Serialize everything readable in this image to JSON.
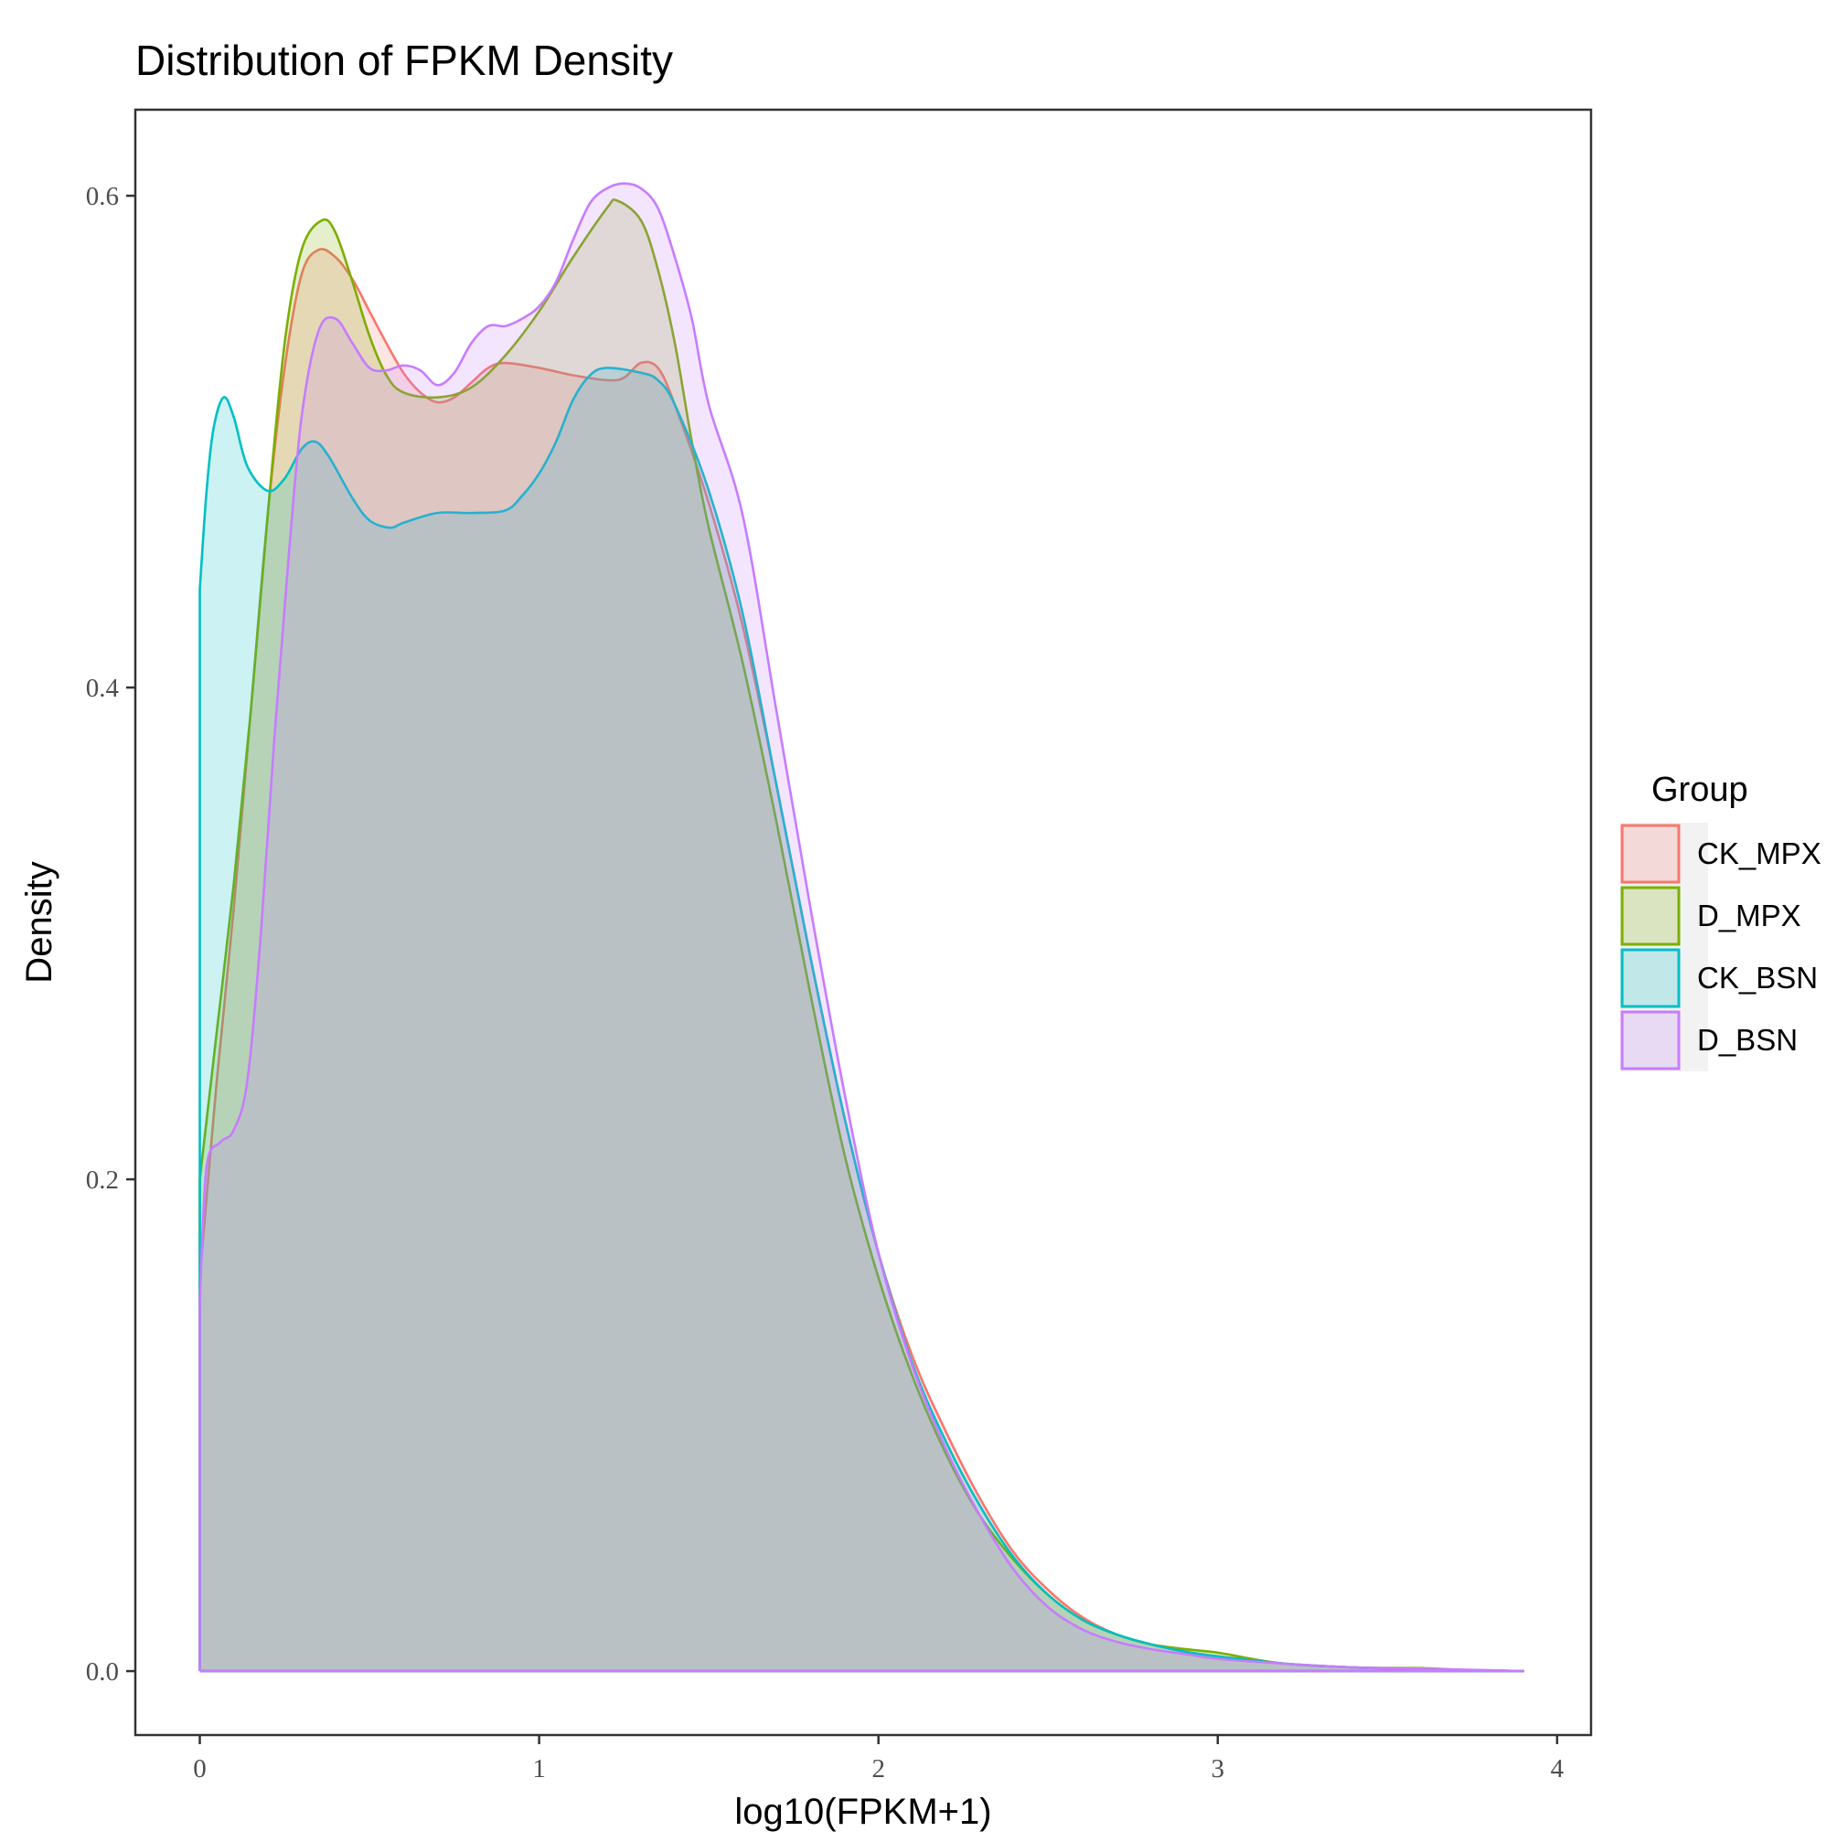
{
  "chart_data": {
    "type": "area",
    "title": "Distribution of FPKM Density",
    "xlabel": "log10(FPKM+1)",
    "ylabel": "Density",
    "xlim": [
      -0.19,
      4.1
    ],
    "ylim": [
      -0.026,
      0.635
    ],
    "x_ticks": [
      0,
      1,
      2,
      3,
      4
    ],
    "x_tick_labels": [
      "0",
      "1",
      "2",
      "3",
      "4"
    ],
    "y_ticks": [
      0.0,
      0.2,
      0.4,
      0.6
    ],
    "y_tick_labels": [
      "0.0",
      "0.2",
      "0.4",
      "0.6"
    ],
    "grid": false,
    "legend": {
      "title": "Group",
      "position": "right"
    },
    "series": [
      {
        "name": "CK_MPX",
        "color": "#F8766D",
        "points": [
          [
            0,
            0.16
          ],
          [
            0.05,
            0.24
          ],
          [
            0.1,
            0.31
          ],
          [
            0.15,
            0.39
          ],
          [
            0.2,
            0.47
          ],
          [
            0.25,
            0.53
          ],
          [
            0.3,
            0.568
          ],
          [
            0.35,
            0.578
          ],
          [
            0.4,
            0.575
          ],
          [
            0.45,
            0.566
          ],
          [
            0.5,
            0.553
          ],
          [
            0.55,
            0.54
          ],
          [
            0.6,
            0.528
          ],
          [
            0.65,
            0.52
          ],
          [
            0.7,
            0.516
          ],
          [
            0.75,
            0.518
          ],
          [
            0.8,
            0.524
          ],
          [
            0.85,
            0.53
          ],
          [
            0.9,
            0.532
          ],
          [
            1.0,
            0.53
          ],
          [
            1.1,
            0.527
          ],
          [
            1.2,
            0.525
          ],
          [
            1.25,
            0.526
          ],
          [
            1.3,
            0.532
          ],
          [
            1.35,
            0.53
          ],
          [
            1.4,
            0.515
          ],
          [
            1.5,
            0.475
          ],
          [
            1.6,
            0.425
          ],
          [
            1.7,
            0.36
          ],
          [
            1.8,
            0.29
          ],
          [
            1.9,
            0.225
          ],
          [
            2.0,
            0.17
          ],
          [
            2.1,
            0.128
          ],
          [
            2.2,
            0.097
          ],
          [
            2.3,
            0.07
          ],
          [
            2.4,
            0.048
          ],
          [
            2.5,
            0.033
          ],
          [
            2.6,
            0.022
          ],
          [
            2.7,
            0.015
          ],
          [
            2.8,
            0.011
          ],
          [
            2.9,
            0.008
          ],
          [
            3.0,
            0.006
          ],
          [
            3.2,
            0.003
          ],
          [
            3.4,
            0.0015
          ],
          [
            3.6,
            0.0008
          ],
          [
            3.8,
            0.0003
          ],
          [
            3.9,
            0.0
          ]
        ]
      },
      {
        "name": "D_MPX",
        "color": "#7CAE00",
        "points": [
          [
            0,
            0.2
          ],
          [
            0.05,
            0.26
          ],
          [
            0.1,
            0.32
          ],
          [
            0.15,
            0.39
          ],
          [
            0.2,
            0.47
          ],
          [
            0.25,
            0.54
          ],
          [
            0.3,
            0.578
          ],
          [
            0.36,
            0.59
          ],
          [
            0.4,
            0.585
          ],
          [
            0.45,
            0.565
          ],
          [
            0.5,
            0.543
          ],
          [
            0.55,
            0.527
          ],
          [
            0.6,
            0.52
          ],
          [
            0.7,
            0.518
          ],
          [
            0.8,
            0.522
          ],
          [
            0.9,
            0.535
          ],
          [
            1.0,
            0.553
          ],
          [
            1.1,
            0.575
          ],
          [
            1.2,
            0.595
          ],
          [
            1.23,
            0.598
          ],
          [
            1.3,
            0.59
          ],
          [
            1.35,
            0.57
          ],
          [
            1.4,
            0.54
          ],
          [
            1.45,
            0.5
          ],
          [
            1.5,
            0.465
          ],
          [
            1.6,
            0.41
          ],
          [
            1.7,
            0.345
          ],
          [
            1.8,
            0.275
          ],
          [
            1.9,
            0.21
          ],
          [
            2.0,
            0.16
          ],
          [
            2.1,
            0.12
          ],
          [
            2.2,
            0.088
          ],
          [
            2.3,
            0.063
          ],
          [
            2.4,
            0.045
          ],
          [
            2.5,
            0.031
          ],
          [
            2.6,
            0.021
          ],
          [
            2.7,
            0.015
          ],
          [
            2.8,
            0.011
          ],
          [
            2.9,
            0.009
          ],
          [
            3.0,
            0.0075
          ],
          [
            3.1,
            0.005
          ],
          [
            3.2,
            0.003
          ],
          [
            3.4,
            0.0015
          ],
          [
            3.6,
            0.0012
          ],
          [
            3.75,
            0.0003
          ],
          [
            3.9,
            0.0
          ]
        ]
      },
      {
        "name": "CK_BSN",
        "color": "#00BFC4",
        "points": [
          [
            0,
            0.44
          ],
          [
            0.02,
            0.48
          ],
          [
            0.04,
            0.505
          ],
          [
            0.07,
            0.518
          ],
          [
            0.1,
            0.51
          ],
          [
            0.14,
            0.49
          ],
          [
            0.2,
            0.48
          ],
          [
            0.25,
            0.485
          ],
          [
            0.3,
            0.497
          ],
          [
            0.34,
            0.5
          ],
          [
            0.38,
            0.494
          ],
          [
            0.45,
            0.477
          ],
          [
            0.5,
            0.468
          ],
          [
            0.56,
            0.465
          ],
          [
            0.6,
            0.467
          ],
          [
            0.7,
            0.471
          ],
          [
            0.8,
            0.471
          ],
          [
            0.9,
            0.472
          ],
          [
            0.95,
            0.478
          ],
          [
            1.0,
            0.487
          ],
          [
            1.05,
            0.5
          ],
          [
            1.1,
            0.517
          ],
          [
            1.15,
            0.527
          ],
          [
            1.2,
            0.53
          ],
          [
            1.3,
            0.528
          ],
          [
            1.35,
            0.525
          ],
          [
            1.4,
            0.515
          ],
          [
            1.5,
            0.48
          ],
          [
            1.6,
            0.43
          ],
          [
            1.7,
            0.36
          ],
          [
            1.8,
            0.29
          ],
          [
            1.9,
            0.225
          ],
          [
            2.0,
            0.17
          ],
          [
            2.1,
            0.125
          ],
          [
            2.2,
            0.093
          ],
          [
            2.3,
            0.067
          ],
          [
            2.4,
            0.046
          ],
          [
            2.5,
            0.031
          ],
          [
            2.6,
            0.021
          ],
          [
            2.7,
            0.015
          ],
          [
            2.8,
            0.011
          ],
          [
            2.9,
            0.008
          ],
          [
            3.0,
            0.006
          ],
          [
            3.2,
            0.003
          ],
          [
            3.4,
            0.0015
          ],
          [
            3.6,
            0.0008
          ],
          [
            3.9,
            0.0
          ]
        ]
      },
      {
        "name": "D_BSN",
        "color": "#C77CFF",
        "points": [
          [
            0,
            0.15
          ],
          [
            0.02,
            0.205
          ],
          [
            0.06,
            0.215
          ],
          [
            0.1,
            0.22
          ],
          [
            0.14,
            0.24
          ],
          [
            0.18,
            0.3
          ],
          [
            0.22,
            0.38
          ],
          [
            0.26,
            0.45
          ],
          [
            0.3,
            0.51
          ],
          [
            0.35,
            0.545
          ],
          [
            0.4,
            0.55
          ],
          [
            0.45,
            0.54
          ],
          [
            0.5,
            0.53
          ],
          [
            0.55,
            0.529
          ],
          [
            0.6,
            0.531
          ],
          [
            0.65,
            0.529
          ],
          [
            0.7,
            0.523
          ],
          [
            0.75,
            0.528
          ],
          [
            0.8,
            0.54
          ],
          [
            0.85,
            0.547
          ],
          [
            0.9,
            0.547
          ],
          [
            0.95,
            0.55
          ],
          [
            1.0,
            0.555
          ],
          [
            1.05,
            0.565
          ],
          [
            1.1,
            0.582
          ],
          [
            1.15,
            0.597
          ],
          [
            1.2,
            0.603
          ],
          [
            1.25,
            0.605
          ],
          [
            1.3,
            0.603
          ],
          [
            1.35,
            0.595
          ],
          [
            1.4,
            0.575
          ],
          [
            1.45,
            0.55
          ],
          [
            1.5,
            0.515
          ],
          [
            1.6,
            0.47
          ],
          [
            1.7,
            0.39
          ],
          [
            1.8,
            0.31
          ],
          [
            1.9,
            0.235
          ],
          [
            2.0,
            0.17
          ],
          [
            2.1,
            0.124
          ],
          [
            2.2,
            0.09
          ],
          [
            2.3,
            0.063
          ],
          [
            2.4,
            0.041
          ],
          [
            2.5,
            0.026
          ],
          [
            2.6,
            0.017
          ],
          [
            2.7,
            0.012
          ],
          [
            2.8,
            0.009
          ],
          [
            2.9,
            0.007
          ],
          [
            3.0,
            0.005
          ],
          [
            3.2,
            0.003
          ],
          [
            3.4,
            0.0015
          ],
          [
            3.6,
            0.001
          ],
          [
            3.9,
            0.0
          ]
        ]
      }
    ]
  }
}
